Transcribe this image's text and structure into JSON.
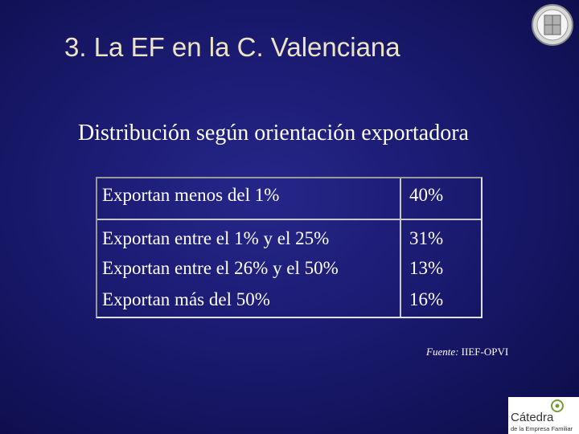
{
  "header": {
    "title": "3. La EF en la C. Valenciana"
  },
  "subtitle": "Distribución según orientación exportadora",
  "table": {
    "rows": [
      [
        "Exportan menos del 1%",
        "40%"
      ],
      [
        "Exportan entre el 1% y el 25%",
        "31%"
      ],
      [
        "Exportan entre el 26% y el 50%",
        "13%"
      ],
      [
        "Exportan más del 50%",
        "16%"
      ]
    ]
  },
  "source": {
    "label": "Fuente:",
    "text": "IIEF-OPVI"
  },
  "logo": {
    "name": "Cátedra",
    "line2": "de la Empresa Familiar"
  }
}
